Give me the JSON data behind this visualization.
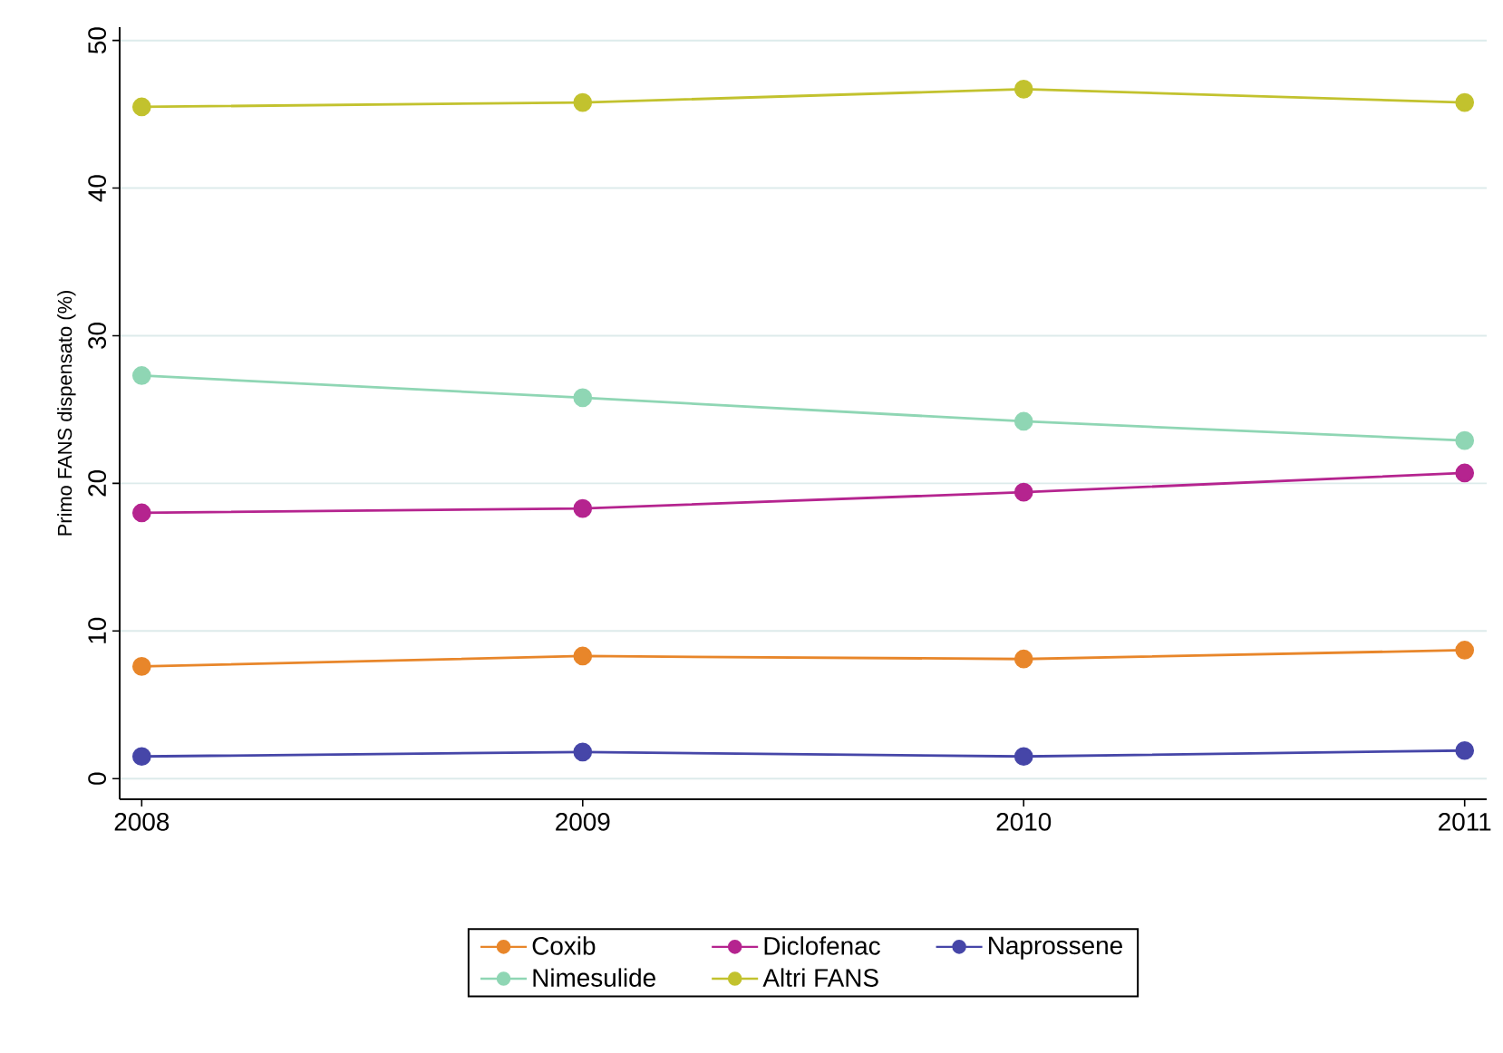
{
  "chart_data": {
    "type": "line",
    "ylabel": "Primo FANS dispensato (%)",
    "x": [
      2008,
      2009,
      2010,
      2011
    ],
    "series": [
      {
        "name": "Coxib",
        "color": "#e8862a",
        "values": [
          7.6,
          8.3,
          8.1,
          8.7
        ]
      },
      {
        "name": "Diclofenac",
        "color": "#b5248f",
        "values": [
          18.0,
          18.3,
          19.4,
          20.7
        ]
      },
      {
        "name": "Naprossene",
        "color": "#4646a8",
        "values": [
          1.5,
          1.8,
          1.5,
          1.9
        ]
      },
      {
        "name": "Nimesulide",
        "color": "#8fd6b4",
        "values": [
          27.3,
          25.8,
          24.2,
          22.9
        ]
      },
      {
        "name": "Altri FANS",
        "color": "#c2c22e",
        "values": [
          45.5,
          45.8,
          46.7,
          45.8
        ]
      }
    ],
    "xlim": [
      2007.95,
      2011.05
    ],
    "ylim": [
      -1.4,
      50.9
    ],
    "xticks": [
      2008,
      2009,
      2010,
      2011
    ],
    "yticks": [
      0,
      10,
      20,
      30,
      40,
      50
    ],
    "grid": "y",
    "legend": "bottom",
    "marker": "circle",
    "line_style": "solid"
  }
}
